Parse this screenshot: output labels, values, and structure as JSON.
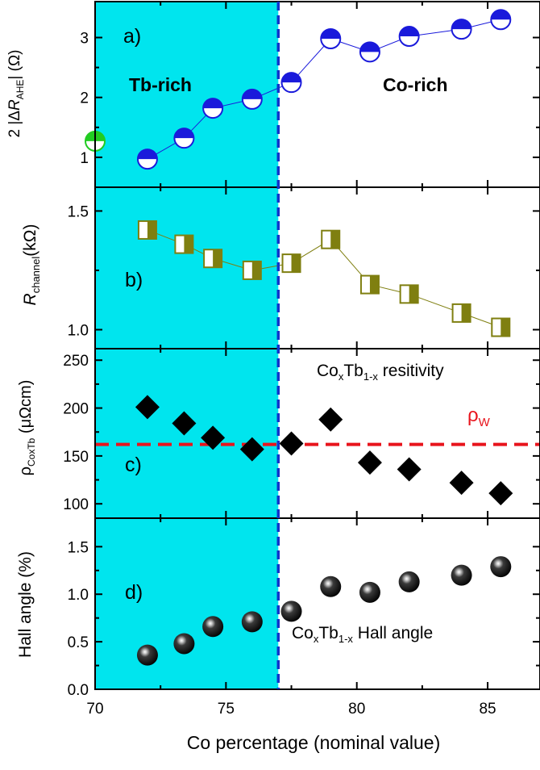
{
  "colors": {
    "tb_region": "#00E5EE",
    "boundary_line": "#1133CC",
    "panel_a_marker": "#1A1ADB",
    "panel_a_left_marker": "#22CC22",
    "panel_b_marker": "#7F7F10",
    "panel_c_marker": "#000000",
    "rho_w_line": "#E8141C",
    "panel_d_marker": "#000000"
  },
  "chart_data": [
    {
      "panel": "a)",
      "type": "scatter",
      "marker": "half-filled circle",
      "connected": true,
      "ylabel_parts": [
        "2 |Δ",
        "R",
        "AHE",
        "| (Ω)"
      ],
      "yticks": [
        1,
        2,
        3
      ],
      "ylim": [
        0.5,
        3.6
      ],
      "annotations": [
        "Tb-rich",
        "Co-rich"
      ],
      "x": [
        72.0,
        73.4,
        74.5,
        76.0,
        77.5,
        79.0,
        80.5,
        82.0,
        84.0,
        85.5
      ],
      "y": [
        0.97,
        1.32,
        1.82,
        1.97,
        2.25,
        2.98,
        2.76,
        3.02,
        3.14,
        3.3
      ],
      "left_edge_point": {
        "x": 70.0,
        "y": 1.27
      }
    },
    {
      "panel": "b)",
      "type": "scatter",
      "marker": "half-filled square",
      "connected": true,
      "ylabel_parts": [
        "R",
        "channel",
        "(kΩ)"
      ],
      "yticks": [
        "1.0",
        "1.5"
      ],
      "ylim": [
        0.92,
        1.6
      ],
      "x": [
        72.0,
        73.4,
        74.5,
        76.0,
        77.5,
        79.0,
        80.5,
        82.0,
        84.0,
        85.5
      ],
      "y": [
        1.42,
        1.36,
        1.3,
        1.25,
        1.28,
        1.38,
        1.19,
        1.15,
        1.07,
        1.01
      ]
    },
    {
      "panel": "c)",
      "type": "scatter",
      "marker": "diamond",
      "ylabel_parts": [
        "ρ",
        "CoxTb",
        " (μΩcm)"
      ],
      "yticks": [
        100,
        150,
        200,
        250
      ],
      "ylim": [
        85,
        262
      ],
      "annotation_parts": [
        "Co",
        "x",
        "Tb",
        "1-x",
        " resitivity"
      ],
      "reference_line": {
        "label_parts": [
          "ρ",
          "W"
        ],
        "y": 162
      },
      "x": [
        72.0,
        73.4,
        74.5,
        76.0,
        77.5,
        79.0,
        80.5,
        82.0,
        84.0,
        85.5
      ],
      "y": [
        201,
        184,
        169,
        157,
        163,
        188,
        143,
        136,
        122,
        111
      ]
    },
    {
      "panel": "d)",
      "type": "scatter",
      "marker": "sphere",
      "ylabel": "Hall angle (%)",
      "yticks": [
        "0.0",
        "0.5",
        "1.0",
        "1.5"
      ],
      "ylim": [
        0.0,
        1.8
      ],
      "annotation_parts": [
        "Co",
        "x",
        "Tb",
        "1-x",
        " Hall angle"
      ],
      "x": [
        72.0,
        73.4,
        74.5,
        76.0,
        77.5,
        79.0,
        80.5,
        82.0,
        84.0,
        85.5
      ],
      "y": [
        0.36,
        0.48,
        0.66,
        0.71,
        0.82,
        1.08,
        1.02,
        1.13,
        1.2,
        1.29
      ]
    }
  ],
  "shared_x": {
    "xlabel": "Co percentage (nominal value)",
    "xlim": [
      70,
      87
    ],
    "xticks": [
      70,
      75,
      80,
      85
    ],
    "boundary_x": 77.0
  }
}
